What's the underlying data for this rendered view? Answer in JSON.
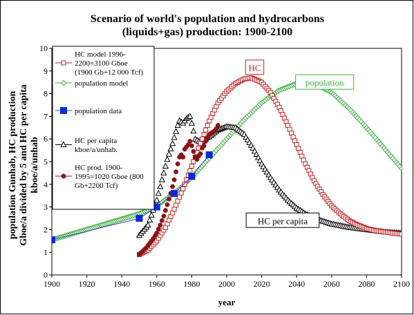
{
  "chart_data": {
    "type": "scatter",
    "title_lines": [
      "Scenario of world's population and hydrocarbons",
      "(liquids+gas) production: 1900-2100"
    ],
    "xlabel": "year",
    "ylabel_lines": [
      "population Gunhab, HC production",
      "Gboe/a divided by 5 and HC per capita",
      "kboe/a/unhab"
    ],
    "xlim": [
      1900,
      2100
    ],
    "ylim": [
      0,
      10
    ],
    "xticks": [
      1900,
      1920,
      1940,
      1960,
      1980,
      2000,
      2020,
      2040,
      2060,
      2080,
      2100
    ],
    "yticks": [
      0,
      1,
      2,
      3,
      4,
      5,
      6,
      7,
      8,
      9,
      10
    ],
    "grid": false,
    "legend_position": "top-left",
    "colors": {
      "hc_model": "#c02020",
      "population_model": "#40b040",
      "population_data": "#0a2ad8",
      "hc_per_capita": "#000000",
      "hc_prod": "#8b1414",
      "population_data_line": "#303cc0"
    },
    "series": [
      {
        "name": "HC model 1996-2200=3100 Gboe (1900 Gb+12 000 Tcf)",
        "legend_lines": [
          "HC model 1996-",
          "2200=3100 Gboe",
          "(1900 Gb+12 000 Tcf)"
        ],
        "marker": "open-square",
        "x": [
          1950,
          1955,
          1960,
          1965,
          1970,
          1975,
          1980,
          1985,
          1990,
          1995,
          2000,
          2005,
          2010,
          2014,
          2020,
          2025,
          2030,
          2035,
          2040,
          2045,
          2050,
          2055,
          2060,
          2065,
          2070,
          2075,
          2080,
          2085,
          2090,
          2095,
          2100
        ],
        "y": [
          0.9,
          1.1,
          1.5,
          2.1,
          2.9,
          3.8,
          4.8,
          5.8,
          6.8,
          7.6,
          8.1,
          8.45,
          8.65,
          8.7,
          8.5,
          8.05,
          7.4,
          6.6,
          5.75,
          4.9,
          4.15,
          3.55,
          3.05,
          2.7,
          2.4,
          2.2,
          2.05,
          1.95,
          1.9,
          1.85,
          1.8
        ]
      },
      {
        "name": "population model",
        "legend_lines": [
          "population model"
        ],
        "marker": "open-diamond",
        "x": [
          1900,
          1950,
          1960,
          1970,
          1980,
          1990,
          2000,
          2010,
          2020,
          2030,
          2040,
          2045,
          2050,
          2060,
          2070,
          2080,
          2090,
          2100
        ],
        "y": [
          1.55,
          2.7,
          3.05,
          3.6,
          4.3,
          5.15,
          6.0,
          6.85,
          7.6,
          8.15,
          8.45,
          8.5,
          8.45,
          8.05,
          7.35,
          6.5,
          5.6,
          4.7
        ]
      },
      {
        "name": "population data",
        "legend_lines": [
          "population data"
        ],
        "marker": "filled-square",
        "x": [
          1900,
          1950,
          1960,
          1970,
          1980,
          1990
        ],
        "y": [
          1.55,
          2.5,
          3.0,
          3.6,
          4.35,
          5.3
        ]
      },
      {
        "name": "HC per capita kboe/a/unhab.",
        "legend_lines": [
          "HC per capita",
          "kboe/a/unhab."
        ],
        "marker": "open-triangle",
        "x": [
          1950,
          1955,
          1960,
          1963,
          1966,
          1969,
          1972,
          1973,
          1975,
          1977,
          1979,
          1980,
          1982,
          1985,
          1990,
          1995,
          2000,
          2005,
          2010,
          2015,
          2020,
          2025,
          2030,
          2035,
          2040,
          2045,
          2050,
          2060,
          2070,
          2080,
          2090,
          2100
        ],
        "y": [
          1.75,
          2.2,
          3.3,
          4.2,
          5.1,
          5.8,
          6.6,
          6.8,
          6.7,
          6.9,
          7.0,
          6.7,
          6.0,
          5.85,
          6.1,
          6.4,
          6.55,
          6.5,
          6.2,
          5.6,
          4.9,
          4.3,
          3.75,
          3.3,
          2.95,
          2.7,
          2.5,
          2.25,
          2.1,
          2.0,
          1.9,
          1.85
        ]
      },
      {
        "name": "HC prod. 1900-1995=1020 Gboe (800 Gb+2200 Tcf)",
        "legend_lines": [
          "HC prod. 1900-",
          "1995=1020 Gboe (800",
          "Gb+2200 Tcf)"
        ],
        "marker": "filled-circle",
        "x": [
          1950,
          1952,
          1954,
          1956,
          1958,
          1960,
          1962,
          1964,
          1966,
          1968,
          1970,
          1972,
          1973,
          1974,
          1975,
          1976,
          1977,
          1978,
          1979,
          1980,
          1981,
          1982,
          1983,
          1984,
          1985,
          1986,
          1987,
          1988,
          1989,
          1990,
          1991,
          1992,
          1993,
          1994,
          1995
        ],
        "y": [
          0.9,
          1.05,
          1.2,
          1.4,
          1.6,
          1.85,
          2.2,
          2.6,
          3.1,
          3.6,
          4.2,
          4.9,
          5.2,
          5.3,
          5.2,
          5.55,
          5.65,
          5.75,
          5.9,
          5.7,
          5.45,
          5.2,
          5.1,
          5.25,
          5.35,
          5.6,
          5.7,
          5.9,
          6.05,
          6.2,
          6.25,
          6.3,
          6.35,
          6.45,
          6.6
        ]
      }
    ],
    "annotations": [
      {
        "text": "HC",
        "x": 2016,
        "y": 9.15,
        "color": "#c02020"
      },
      {
        "text": "population",
        "x": 2056,
        "y": 8.5,
        "color": "#40b040"
      },
      {
        "text": "HC per capita",
        "x": 2032,
        "y": 2.4,
        "color": "#000000"
      }
    ]
  }
}
